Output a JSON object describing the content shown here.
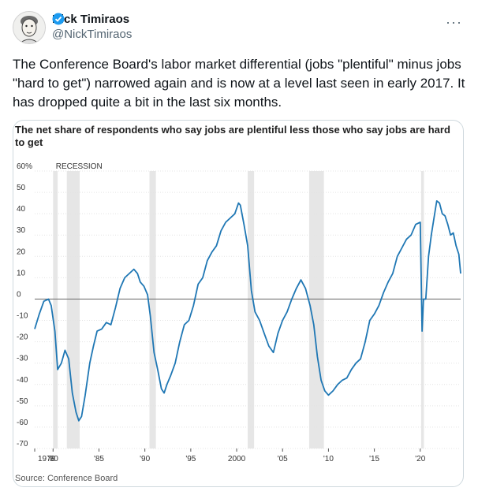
{
  "author": {
    "name": "Nick Timiraos",
    "handle": "@NickTimiraos"
  },
  "tweet": {
    "text": "The Conference Board's labor market differential (jobs \"plentiful\" minus jobs \"hard to get\") narrowed again and is now at a level last seen in early 2017. It has dropped quite a bit in the last six months."
  },
  "colors": {
    "line": "#1f77b4",
    "recession": "#e6e6e6",
    "verified": "#1d9bf0"
  },
  "chart_data": {
    "type": "line",
    "title": "The net share of respondents who say jobs are plentiful less those who say jobs are hard to get",
    "source": "Source: Conference Board",
    "recession_label": "RECESSION",
    "y_ticks": [
      "60%",
      "50",
      "40",
      "30",
      "20",
      "10",
      "0",
      "-10",
      "-20",
      "-30",
      "-40",
      "-50",
      "-60",
      "-70"
    ],
    "x_ticks": [
      "1978",
      "'80",
      "'85",
      "'90",
      "'95",
      "2000",
      "'05",
      "'10",
      "'15",
      "'20"
    ],
    "ylim": [
      -70,
      60
    ],
    "xlim": [
      1978,
      2024.4
    ],
    "recessions": [
      [
        1980.0,
        1980.5
      ],
      [
        1981.5,
        1982.9
      ],
      [
        1990.5,
        1991.2
      ],
      [
        2001.2,
        2001.9
      ],
      [
        2007.9,
        2009.5
      ],
      [
        2020.1,
        2020.4
      ]
    ],
    "series": [
      {
        "x": [
          1978.0,
          1978.5,
          1979.0,
          1979.5,
          1979.8,
          1980.2,
          1980.5,
          1980.9,
          1981.3,
          1981.7,
          1982.1,
          1982.5,
          1982.8,
          1983.1,
          1983.5,
          1984.0,
          1984.4,
          1984.8,
          1985.3,
          1985.8,
          1986.3,
          1986.8,
          1987.3,
          1987.8,
          1988.3,
          1988.8,
          1989.2,
          1989.5,
          1989.9,
          1990.3,
          1990.6,
          1991.0,
          1991.4,
          1991.8,
          1992.1,
          1992.4,
          1992.8,
          1993.3,
          1993.8,
          1994.3,
          1994.8,
          1995.3,
          1995.8,
          1996.3,
          1996.8,
          1997.3,
          1997.8,
          1998.3,
          1998.8,
          1999.3,
          1999.8,
          2000.2,
          2000.4,
          2000.8,
          2001.2,
          2001.6,
          2002.0,
          2002.5,
          2003.0,
          2003.5,
          2004.0,
          2004.5,
          2005.0,
          2005.5,
          2006.0,
          2006.5,
          2007.0,
          2007.5,
          2008.0,
          2008.4,
          2008.8,
          2009.2,
          2009.6,
          2010.0,
          2010.5,
          2011.0,
          2011.5,
          2012.0,
          2012.5,
          2013.0,
          2013.5,
          2014.0,
          2014.5,
          2015.0,
          2015.5,
          2016.0,
          2016.5,
          2017.0,
          2017.5,
          2018.0,
          2018.5,
          2019.0,
          2019.5,
          2020.0,
          2020.2,
          2020.35,
          2020.6,
          2020.9,
          2021.2,
          2021.5,
          2021.8,
          2022.1,
          2022.4,
          2022.7,
          2023.0,
          2023.3,
          2023.6,
          2023.9,
          2024.2,
          2024.4
        ],
        "values": [
          -14,
          -7,
          -1,
          0,
          -3,
          -15,
          -33,
          -30,
          -24,
          -28,
          -44,
          -53,
          -57,
          -55,
          -45,
          -30,
          -22,
          -15,
          -14,
          -11,
          -12,
          -4,
          5,
          10,
          12,
          14,
          12,
          8,
          6,
          2,
          -8,
          -25,
          -33,
          -42,
          -44,
          -40,
          -36,
          -30,
          -20,
          -12,
          -10,
          -3,
          7,
          10,
          18,
          22,
          25,
          32,
          36,
          38,
          40,
          45,
          44,
          35,
          25,
          4,
          -6,
          -10,
          -16,
          -22,
          -25,
          -16,
          -10,
          -6,
          0,
          5,
          9,
          5,
          -3,
          -12,
          -27,
          -38,
          -43,
          -45,
          -43,
          -40,
          -38,
          -37,
          -33,
          -30,
          -28,
          -20,
          -10,
          -7,
          -3,
          3,
          8,
          12,
          20,
          24,
          28,
          30,
          35,
          36,
          -15,
          0,
          0,
          20,
          30,
          38,
          46,
          45,
          40,
          39,
          35,
          30,
          31,
          25,
          21,
          12
        ]
      }
    ]
  }
}
